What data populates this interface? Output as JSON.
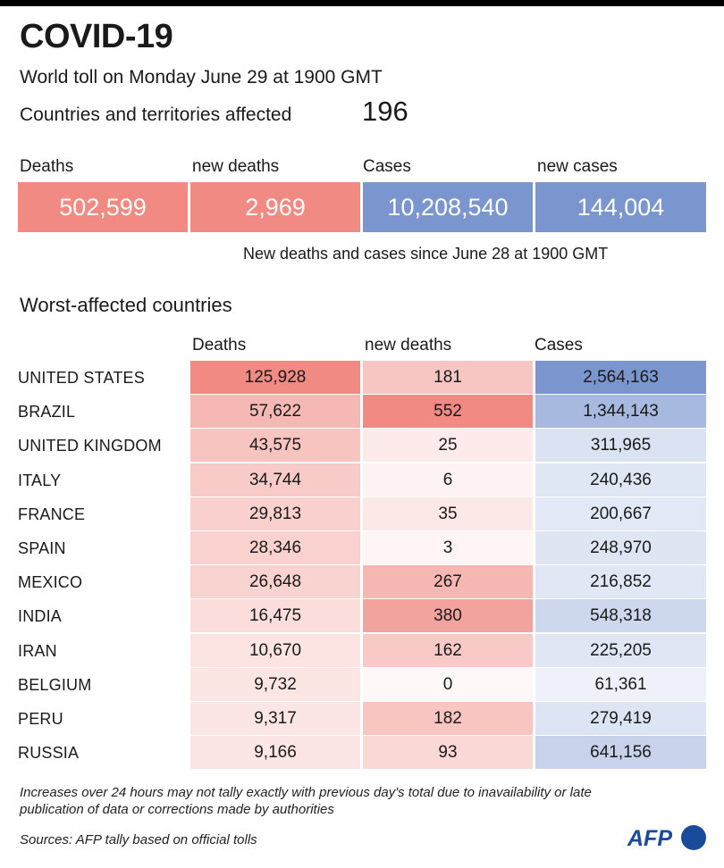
{
  "title": "COVID-19",
  "subtitle": "World toll on Monday June 29 at 1900 GMT",
  "countries_affected": {
    "label": "Countries and territories affected",
    "value": "196"
  },
  "totals": [
    {
      "label": "Deaths",
      "value": "502,599",
      "color": "#f08a82"
    },
    {
      "label": "new deaths",
      "value": "2,969",
      "color": "#f08a82"
    },
    {
      "label": "Cases",
      "value": "10,208,540",
      "color": "#7b95cf"
    },
    {
      "label": "new cases",
      "value": "144,004",
      "color": "#7b95cf"
    }
  ],
  "totals_note": "New deaths and cases since June 28 at 1900 GMT",
  "chart_data": {
    "type": "table",
    "title": "Worst-affected countries",
    "columns": [
      "Deaths",
      "new deaths",
      "Cases"
    ],
    "rows": [
      {
        "country": "UNITED STATES",
        "deaths": "125,928",
        "new_deaths": "181",
        "cases": "2,564,163"
      },
      {
        "country": "BRAZIL",
        "deaths": "57,622",
        "new_deaths": "552",
        "cases": "1,344,143"
      },
      {
        "country": "UNITED KINGDOM",
        "deaths": "43,575",
        "new_deaths": "25",
        "cases": "311,965"
      },
      {
        "country": "ITALY",
        "deaths": "34,744",
        "new_deaths": "6",
        "cases": "240,436"
      },
      {
        "country": "FRANCE",
        "deaths": "29,813",
        "new_deaths": "35",
        "cases": "200,667"
      },
      {
        "country": "SPAIN",
        "deaths": "28,346",
        "new_deaths": "3",
        "cases": "248,970"
      },
      {
        "country": "MEXICO",
        "deaths": "26,648",
        "new_deaths": "267",
        "cases": "216,852"
      },
      {
        "country": "INDIA",
        "deaths": "16,475",
        "new_deaths": "380",
        "cases": "548,318"
      },
      {
        "country": "IRAN",
        "deaths": "10,670",
        "new_deaths": "162",
        "cases": "225,205"
      },
      {
        "country": "BELGIUM",
        "deaths": "9,732",
        "new_deaths": "0",
        "cases": "61,361"
      },
      {
        "country": "PERU",
        "deaths": "9,317",
        "new_deaths": "182",
        "cases": "279,419"
      },
      {
        "country": "RUSSIA",
        "deaths": "9,166",
        "new_deaths": "93",
        "cases": "641,156"
      }
    ],
    "colors": {
      "deaths": "#f08a82",
      "cases": "#7b95cf"
    }
  },
  "footnote": "Increases over 24 hours may not tally exactly with previous day's total due to inavailability or late publication of data or corrections made by authorities",
  "source": "Sources: AFP tally based on official tolls",
  "logo_text": "AFP"
}
